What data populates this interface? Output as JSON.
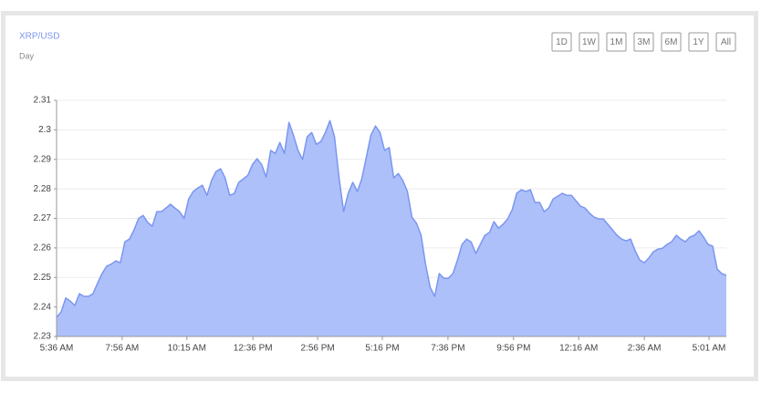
{
  "chart_data": {
    "type": "area",
    "title": "XRP/USD",
    "subtitle": "Day",
    "buttons": [
      "1D",
      "1W",
      "1M",
      "3M",
      "6M",
      "1Y",
      "All"
    ],
    "color": "#7b96ef",
    "fill": "#adc0fa",
    "grid": true,
    "values": [
      2.2365,
      2.2383,
      2.243,
      2.242,
      2.2405,
      2.2445,
      2.2436,
      2.2436,
      2.2445,
      2.248,
      2.2513,
      2.2538,
      2.2545,
      2.2556,
      2.255,
      2.2621,
      2.263,
      2.2661,
      2.27,
      2.271,
      2.2686,
      2.2673,
      2.2723,
      2.2723,
      2.2735,
      2.2748,
      2.2735,
      2.2723,
      2.27,
      2.2766,
      2.2791,
      2.2803,
      2.2812,
      2.2778,
      2.2828,
      2.2859,
      2.2868,
      2.2837,
      2.2778,
      2.2784,
      2.2822,
      2.2834,
      2.2846,
      2.2883,
      2.2902,
      2.2883,
      2.284,
      2.293,
      2.292,
      2.2957,
      2.292,
      2.3025,
      2.2982,
      2.293,
      2.29,
      2.2976,
      2.2991,
      2.2951,
      2.296,
      2.2991,
      2.3031,
      2.2976,
      2.2837,
      2.2723,
      2.2785,
      2.2822,
      2.2791,
      2.2834,
      2.2908,
      2.2982,
      2.3013,
      2.2991,
      2.293,
      2.294,
      2.2837,
      2.2852,
      2.2828,
      2.2791,
      2.2704,
      2.2683,
      2.2643,
      2.2544,
      2.2467,
      2.2436,
      2.2513,
      2.2497,
      2.2497,
      2.2513,
      2.2559,
      2.2612,
      2.263,
      2.262,
      2.2581,
      2.2612,
      2.2643,
      2.2652,
      2.2689,
      2.2667,
      2.268,
      2.2698,
      2.2729,
      2.2785,
      2.2797,
      2.2791,
      2.2797,
      2.2754,
      2.2754,
      2.2723,
      2.2735,
      2.2766,
      2.2775,
      2.2785,
      2.2778,
      2.2778,
      2.276,
      2.2741,
      2.2735,
      2.2717,
      2.2704,
      2.2698,
      2.2698,
      2.268,
      2.2661,
      2.2643,
      2.263,
      2.2624,
      2.263,
      2.259,
      2.2559,
      2.255,
      2.2566,
      2.2587,
      2.2596,
      2.2599,
      2.2612,
      2.2621,
      2.2643,
      2.263,
      2.2621,
      2.2637,
      2.2643,
      2.2658,
      2.2637,
      2.2612,
      2.2606,
      2.2528,
      2.2513,
      2.2507
    ],
    "xlim": [
      0,
      147
    ],
    "xticks": [
      {
        "value": 0,
        "label": "5:36 AM"
      },
      {
        "value": 14.4,
        "label": "7:56 AM"
      },
      {
        "value": 28.6,
        "label": "10:15 AM"
      },
      {
        "value": 43.1,
        "label": "12:36 PM"
      },
      {
        "value": 57.3,
        "label": "2:56 PM"
      },
      {
        "value": 71.5,
        "label": "5:16 PM"
      },
      {
        "value": 85.9,
        "label": "7:36 PM"
      },
      {
        "value": 100.3,
        "label": "9:56 PM"
      },
      {
        "value": 114.6,
        "label": "12:16 AM"
      },
      {
        "value": 129,
        "label": "2:36 AM"
      },
      {
        "value": 143.2,
        "label": "5:01 AM"
      }
    ],
    "ylim": [
      2.23,
      2.31
    ],
    "yticks": [
      2.23,
      2.24,
      2.25,
      2.26,
      2.27,
      2.28,
      2.29,
      2.3,
      2.31
    ]
  }
}
